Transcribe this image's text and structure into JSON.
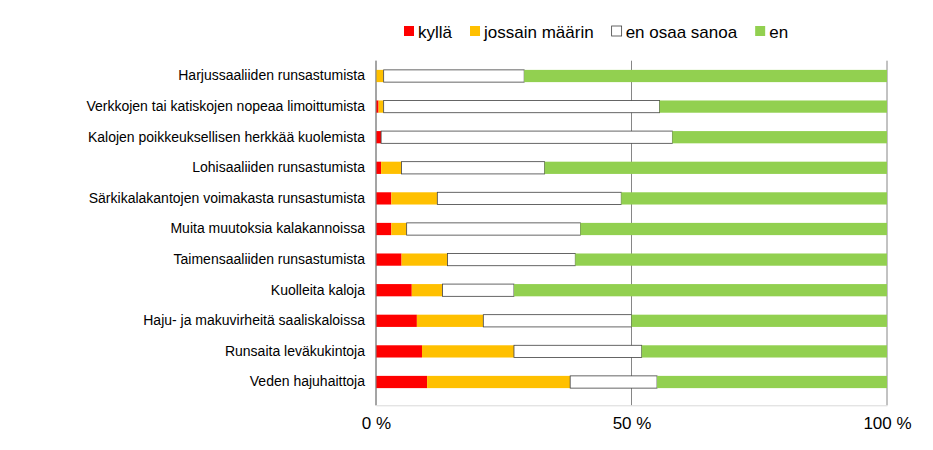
{
  "chart_data": {
    "type": "bar",
    "orientation": "horizontal",
    "stacked": true,
    "grid": true,
    "legend": "top",
    "categories": [
      "Harjussaaliiden runsastumista",
      "Verkkojen tai katiskojen nopeaa limoittumista",
      "Kalojen poikkeuksellisen herkkää kuolemista",
      "Lohisaaliiden runsastumista",
      "Särkikalakantojen voimakasta runsastumista",
      "Muita muutoksia kalakannoissa",
      "Taimensaaliiden runsastumista",
      "Kuolleita kaloja",
      "Haju- ja makuvirheitä saaliskaloissa",
      "Runsaita leväkukintoja",
      "Veden hajuhaittoja"
    ],
    "series": [
      {
        "name": "kyllä",
        "color": "#ff0000",
        "values": [
          0,
          0.5,
          1,
          1,
          3,
          3,
          5,
          7,
          8,
          9,
          10
        ]
      },
      {
        "name": "jossain määrin",
        "color": "#ffc000",
        "values": [
          1.5,
          1,
          0,
          4,
          9,
          3,
          9,
          6,
          13,
          18,
          28
        ]
      },
      {
        "name": "en osaa sanoa",
        "color": "#ffffff",
        "values": [
          27.5,
          54,
          57,
          28,
          36,
          34,
          25,
          14,
          29,
          25,
          17
        ]
      },
      {
        "name": "en",
        "color": "#92d050",
        "values": [
          71,
          44.5,
          42,
          67,
          52,
          60,
          61,
          73,
          50,
          48,
          45
        ]
      }
    ],
    "xlim": [
      0,
      100
    ],
    "xticks": [
      {
        "value": 0,
        "label": "0 %"
      },
      {
        "value": 50,
        "label": "50 %"
      },
      {
        "value": 100,
        "label": "100 %"
      }
    ]
  }
}
